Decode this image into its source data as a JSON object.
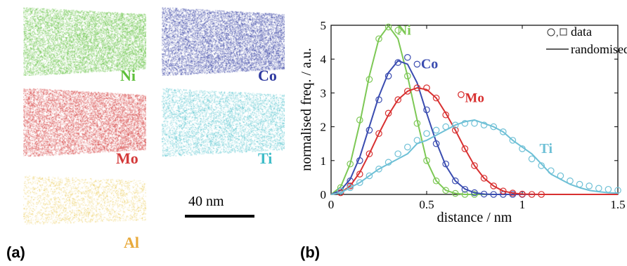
{
  "panels": {
    "a_label": "(a)",
    "b_label": "(b)"
  },
  "clouds": [
    {
      "id": "ni",
      "label": "Ni",
      "color": "#5dbf3a",
      "density": 1.0
    },
    {
      "id": "co",
      "label": "Co",
      "color": "#2f3aa0",
      "density": 1.0
    },
    {
      "id": "mo",
      "label": "Mo",
      "color": "#d43a3a",
      "density": 1.0
    },
    {
      "id": "ti",
      "label": "Ti",
      "color": "#3fbcc8",
      "density": 0.6
    },
    {
      "id": "al",
      "label": "Al",
      "color": "#e8c23a",
      "density": 0.25
    }
  ],
  "scalebar": {
    "label": "40 nm"
  },
  "chart_data": {
    "type": "line",
    "xlabel": "distance / nm",
    "ylabel": "normalised freq. / a.u.",
    "xlim": [
      0,
      1.5
    ],
    "ylim": [
      0,
      5
    ],
    "xticks": [
      "0",
      "0.5",
      "1",
      "1.5"
    ],
    "yticks": [
      "0",
      "1",
      "2",
      "3",
      "4",
      "5"
    ],
    "grid": false,
    "legend": {
      "position": "top-right",
      "entries": [
        "data",
        "randomised"
      ],
      "data_markers": "o,□"
    },
    "inline_legend": {
      "marker": "o",
      "label": "Mo"
    },
    "series": [
      {
        "name": "Ni",
        "color": "#7dc855",
        "fit": {
          "x": [
            0,
            0.05,
            0.1,
            0.15,
            0.2,
            0.25,
            0.3,
            0.35,
            0.4,
            0.45,
            0.5,
            0.55,
            0.6,
            0.65,
            0.7,
            0.75,
            0.8,
            1.5
          ],
          "y": [
            0,
            0.22,
            0.9,
            2.1,
            3.5,
            4.6,
            4.98,
            4.6,
            3.5,
            2.2,
            1.0,
            0.4,
            0.12,
            0.03,
            0,
            0,
            0,
            0
          ]
        },
        "points": {
          "x": [
            0.05,
            0.1,
            0.15,
            0.2,
            0.25,
            0.3,
            0.35,
            0.4,
            0.45,
            0.5,
            0.55,
            0.6,
            0.65,
            0.7,
            0.75
          ],
          "y": [
            0.2,
            0.9,
            2.2,
            3.4,
            4.6,
            4.95,
            4.85,
            3.5,
            2.1,
            1.0,
            0.4,
            0.12,
            0.03,
            0,
            0
          ]
        }
      },
      {
        "name": "Co",
        "color": "#3a4cb0",
        "fit": {
          "x": [
            0,
            0.05,
            0.1,
            0.15,
            0.2,
            0.25,
            0.3,
            0.35,
            0.4,
            0.45,
            0.5,
            0.55,
            0.6,
            0.65,
            0.7,
            0.75,
            0.8,
            0.85,
            0.9,
            1.5
          ],
          "y": [
            0,
            0.12,
            0.45,
            1.1,
            2.0,
            2.9,
            3.6,
            3.95,
            3.85,
            3.3,
            2.4,
            1.55,
            0.85,
            0.4,
            0.16,
            0.05,
            0.01,
            0,
            0,
            0
          ]
        },
        "points": {
          "x": [
            0.05,
            0.1,
            0.15,
            0.2,
            0.25,
            0.3,
            0.35,
            0.4,
            0.45,
            0.5,
            0.55,
            0.6,
            0.65,
            0.7,
            0.75,
            0.8,
            0.85,
            0.9,
            0.95,
            1.0
          ],
          "y": [
            0.1,
            0.4,
            1.0,
            1.9,
            2.8,
            3.5,
            3.9,
            4.05,
            3.85,
            2.5,
            1.5,
            0.9,
            0.4,
            0.15,
            0.05,
            0.01,
            0,
            0,
            0,
            0
          ]
        }
      },
      {
        "name": "Mo",
        "color": "#d83030",
        "fit": {
          "x": [
            0,
            0.05,
            0.1,
            0.15,
            0.2,
            0.25,
            0.3,
            0.35,
            0.4,
            0.45,
            0.5,
            0.55,
            0.6,
            0.65,
            0.7,
            0.75,
            0.8,
            0.85,
            0.9,
            0.95,
            1.0,
            1.1,
            1.5
          ],
          "y": [
            0,
            0.05,
            0.25,
            0.65,
            1.2,
            1.8,
            2.35,
            2.8,
            3.05,
            3.15,
            3.1,
            2.85,
            2.4,
            1.9,
            1.35,
            0.85,
            0.48,
            0.25,
            0.1,
            0.04,
            0.01,
            0,
            0
          ]
        },
        "points": {
          "x": [
            0.05,
            0.1,
            0.15,
            0.2,
            0.25,
            0.3,
            0.35,
            0.4,
            0.45,
            0.5,
            0.55,
            0.6,
            0.65,
            0.7,
            0.75,
            0.8,
            0.85,
            0.9,
            0.95,
            1.0,
            1.05,
            1.1
          ],
          "y": [
            0.05,
            0.25,
            0.6,
            1.2,
            1.8,
            2.4,
            2.8,
            3.05,
            3.15,
            3.15,
            2.85,
            2.35,
            1.9,
            1.35,
            0.85,
            0.48,
            0.25,
            0.1,
            0.04,
            0.01,
            0,
            0
          ]
        }
      },
      {
        "name": "Ti",
        "color": "#6ec0d6",
        "fit": {
          "x": [
            0,
            0.05,
            0.1,
            0.15,
            0.2,
            0.25,
            0.3,
            0.35,
            0.4,
            0.45,
            0.5,
            0.55,
            0.6,
            0.65,
            0.7,
            0.75,
            0.8,
            0.85,
            0.9,
            0.95,
            1.0,
            1.05,
            1.1,
            1.15,
            1.2,
            1.25,
            1.3,
            1.35,
            1.4,
            1.45,
            1.5
          ],
          "y": [
            0,
            0.05,
            0.2,
            0.35,
            0.55,
            0.75,
            0.9,
            1.05,
            1.2,
            1.5,
            1.6,
            1.75,
            1.9,
            2.05,
            2.15,
            2.2,
            2.1,
            2.0,
            1.85,
            1.6,
            1.4,
            1.2,
            0.9,
            0.6,
            0.45,
            0.3,
            0.2,
            0.12,
            0.08,
            0.05,
            0.04
          ]
        },
        "points": {
          "x": [
            0.05,
            0.1,
            0.15,
            0.2,
            0.25,
            0.3,
            0.35,
            0.4,
            0.45,
            0.5,
            0.55,
            0.6,
            0.65,
            0.7,
            0.75,
            0.8,
            0.85,
            0.9,
            0.95,
            1.0,
            1.05,
            1.1,
            1.15,
            1.2,
            1.25,
            1.3,
            1.35,
            1.4,
            1.45,
            1.5
          ],
          "y": [
            0.1,
            0.2,
            0.35,
            0.55,
            0.75,
            0.95,
            1.2,
            1.4,
            1.6,
            1.8,
            1.9,
            2.0,
            2.05,
            2.1,
            2.1,
            2.05,
            2.0,
            1.85,
            1.6,
            1.35,
            1.05,
            0.85,
            0.7,
            0.55,
            0.4,
            0.3,
            0.25,
            0.18,
            0.15,
            0.12
          ]
        }
      }
    ]
  }
}
